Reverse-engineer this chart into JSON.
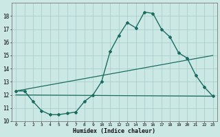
{
  "title": "",
  "xlabel": "Humidex (Indice chaleur)",
  "xlim": [
    -0.5,
    23.5
  ],
  "ylim": [
    10,
    19
  ],
  "yticks": [
    10,
    11,
    12,
    13,
    14,
    15,
    16,
    17,
    18
  ],
  "xticks": [
    0,
    1,
    2,
    3,
    4,
    5,
    6,
    7,
    8,
    9,
    10,
    11,
    12,
    13,
    14,
    15,
    16,
    17,
    18,
    19,
    20,
    21,
    22,
    23
  ],
  "bg_color": "#cce8e4",
  "grid_color": "#aacfcb",
  "line_color": "#1a6b60",
  "line1_x": [
    0,
    1,
    2,
    3,
    4,
    5,
    6,
    7,
    8,
    9,
    10,
    11,
    12,
    13,
    14,
    15,
    16,
    17,
    18,
    19,
    20,
    21,
    22,
    23
  ],
  "line1_y": [
    12.3,
    12.3,
    11.5,
    10.8,
    10.5,
    10.5,
    10.6,
    10.7,
    11.5,
    12.0,
    13.0,
    15.3,
    16.5,
    17.5,
    17.1,
    18.3,
    18.2,
    17.0,
    16.4,
    15.2,
    14.8,
    13.5,
    12.6,
    11.9
  ],
  "line2_x": [
    0,
    23
  ],
  "line2_y": [
    12.3,
    15.0
  ],
  "line3_x": [
    0,
    23
  ],
  "line3_y": [
    12.0,
    11.9
  ]
}
